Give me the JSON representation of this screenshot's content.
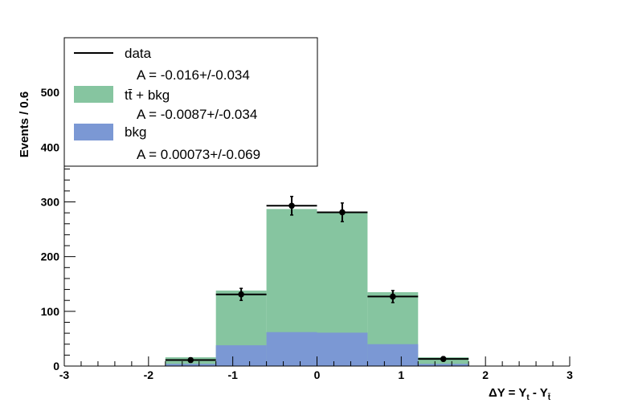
{
  "chart_data": {
    "type": "bar",
    "xlabel": "ΔY = Y",
    "xlabel_sub1": "t",
    "xlabel_mid": " - Y",
    "xlabel_sub2": "t̄",
    "ylabel": "Events / 0.6",
    "xlim": [
      -3,
      3
    ],
    "ylim": [
      0,
      600
    ],
    "xticks": [
      "-3",
      "-2",
      "-1",
      "0",
      "1",
      "2",
      "3"
    ],
    "yticks": [
      "0",
      "100",
      "200",
      "300",
      "400",
      "500"
    ],
    "bin_edges": [
      -3,
      -2.4,
      -1.8,
      -1.2,
      -0.6,
      0,
      0.6,
      1.2,
      1.8,
      2.4,
      3
    ],
    "series": [
      {
        "name": "tt̄ + bkg",
        "values": [
          0,
          0,
          16,
          138,
          287,
          282,
          135,
          16,
          0,
          0
        ],
        "color": "#86c5a0"
      },
      {
        "name": "bkg",
        "values": [
          0,
          0,
          4,
          38,
          62,
          61,
          40,
          4,
          0,
          0
        ],
        "color": "#7b98d4"
      },
      {
        "name": "data",
        "x": [
          -1.5,
          -0.9,
          -0.3,
          0.3,
          0.9,
          1.5
        ],
        "values": [
          11,
          131,
          293,
          281,
          127,
          13
        ],
        "errors": [
          4,
          11,
          17,
          17,
          11,
          4
        ],
        "color": "#000000"
      }
    ],
    "legend": {
      "position": "top-left",
      "entries": [
        {
          "label": "data",
          "asym": "A = -0.016+/-0.034"
        },
        {
          "label": "tt̄ + bkg",
          "asym": "A = -0.0087+/-0.034"
        },
        {
          "label": "bkg",
          "asym": "A = 0.00073+/-0.069"
        }
      ]
    }
  }
}
